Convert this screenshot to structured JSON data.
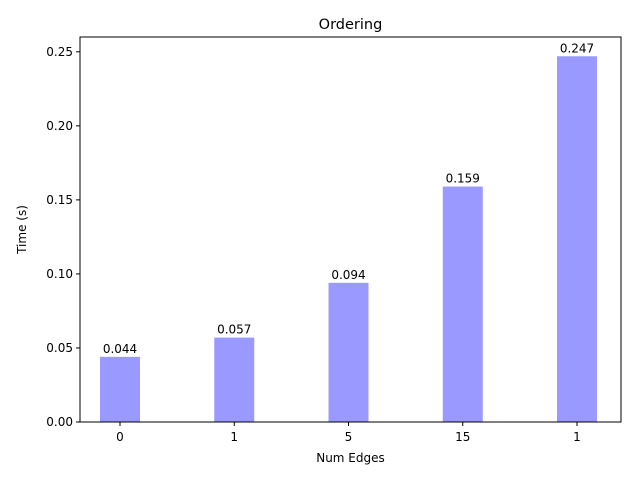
{
  "chart_data": {
    "type": "bar",
    "title": "Ordering",
    "xlabel": "Num Edges",
    "ylabel": "Time (s)",
    "categories": [
      "0",
      "1",
      "5",
      "15",
      "1"
    ],
    "values": [
      0.044,
      0.057,
      0.094,
      0.159,
      0.247
    ],
    "data_labels": [
      "0.044",
      "0.057",
      "0.094",
      "0.159",
      "0.247"
    ],
    "ylim": [
      0,
      0.26
    ],
    "yticks": [
      0.0,
      0.05,
      0.1,
      0.15,
      0.2,
      0.25
    ],
    "ytick_labels": [
      "0.00",
      "0.05",
      "0.10",
      "0.15",
      "0.20",
      "0.25"
    ],
    "bar_color": "#9999ff",
    "grid": false,
    "legend": "none"
  }
}
